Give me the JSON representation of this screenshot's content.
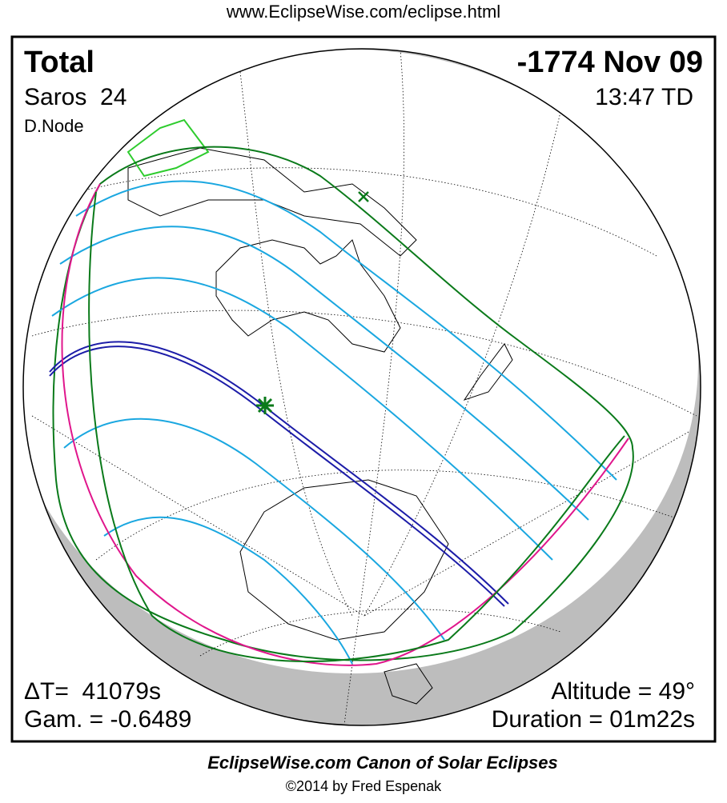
{
  "header": {
    "url": "www.EclipseWise.com/eclipse.html"
  },
  "map": {
    "eclipse_type": "Total",
    "date": "-1774 Nov 09",
    "saros": "Saros  24",
    "time": "13:47 TD",
    "node": "D.Node",
    "delta_t": "ΔT=  41079s",
    "gamma": "Gam. = -0.6489",
    "altitude": "Altitude = 49°",
    "duration": "Duration = 01m22s"
  },
  "footer": {
    "title": "EclipseWise.com Canon of Solar Eclipses",
    "copyright": "©2014 by Fred Espenak"
  }
}
